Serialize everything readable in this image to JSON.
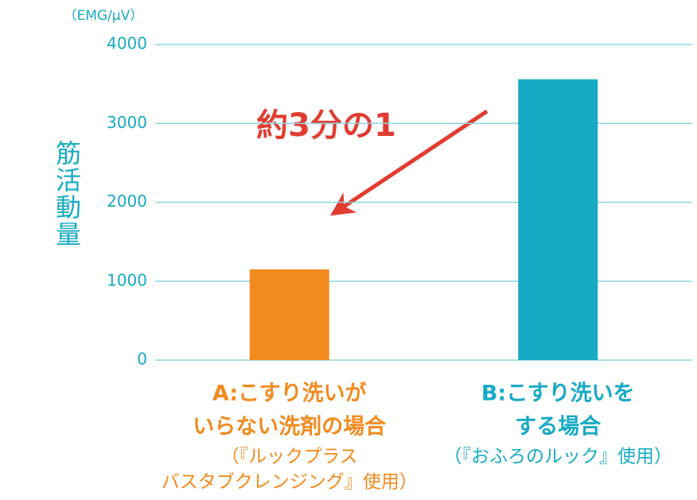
{
  "chart_data": {
    "type": "bar",
    "y_unit": "（EMG/μV）",
    "y_label": "筋活動量",
    "annotation": "約3分の1",
    "categories": [
      [
        "A:こすり洗いが",
        "いらない洗剤の場合"
      ],
      [
        "B:こすり洗いを",
        "する場合"
      ]
    ],
    "notes": [
      [
        "（『ルックプラス",
        "バスタブクレンジング』使用）"
      ],
      [
        "（『おふろのルック』使用）"
      ]
    ],
    "values": [
      1150,
      3560
    ],
    "colors": [
      "#f28a1e",
      "#17aac4"
    ],
    "ylim": [
      0,
      4000
    ],
    "yticks": [
      0,
      1000,
      2000,
      3000,
      4000
    ],
    "grid": true
  }
}
